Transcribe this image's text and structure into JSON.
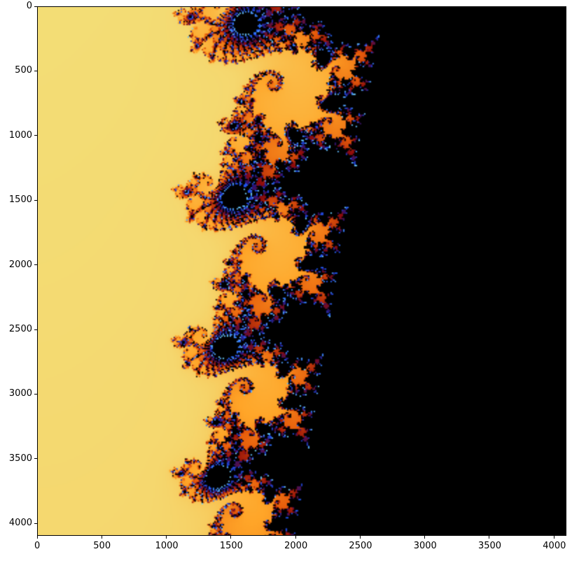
{
  "chart_data": {
    "type": "heatmap",
    "title": "",
    "xlabel": "",
    "ylabel": "",
    "xlim": [
      0,
      4096
    ],
    "ylim": [
      4096,
      0
    ],
    "x_ticks": [
      0,
      500,
      1000,
      1500,
      2000,
      2500,
      3000,
      3500,
      4000
    ],
    "y_ticks": [
      0,
      500,
      1000,
      1500,
      2000,
      2500,
      3000,
      3500,
      4000
    ],
    "x_tick_labels": [
      "0",
      "500",
      "1000",
      "1500",
      "2000",
      "2500",
      "3000",
      "3500",
      "4000"
    ],
    "y_tick_labels": [
      "0",
      "500",
      "1000",
      "1500",
      "2000",
      "2500",
      "3000",
      "3500",
      "4000"
    ],
    "grid": false,
    "colormap": "jet_r",
    "subject": "Mandelbrot set fractal",
    "colors": {
      "background_far": "#c8ffb4",
      "background_mid": "#f0e68c",
      "near": "#ffa500",
      "edge": "#8b0000",
      "filaments": "#1e3cff",
      "inside": "#000000"
    }
  }
}
